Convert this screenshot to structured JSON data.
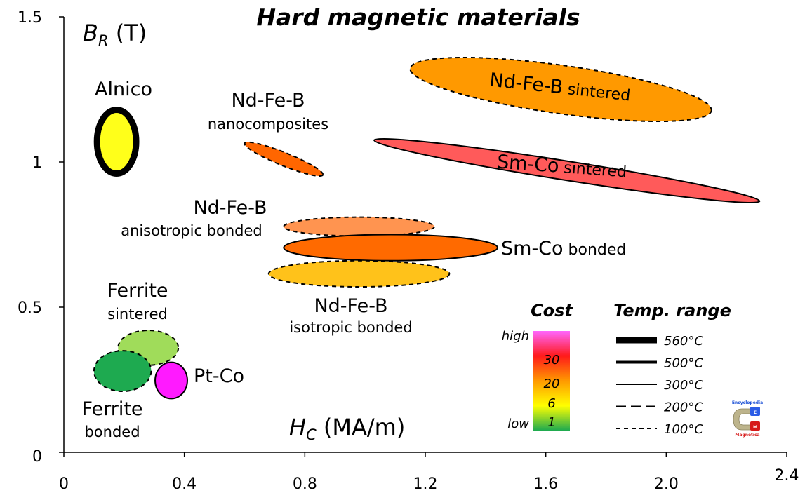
{
  "chart_data": {
    "type": "scatter",
    "title": "Hard magnetic materials",
    "xlabel": "H",
    "xlabel_sub": "C",
    "xlabel_unit": " (MA/m)",
    "ylabel": "B",
    "ylabel_sub": "R",
    "ylabel_unit": " (T)",
    "xlim": [
      0,
      2.4
    ],
    "ylim": [
      0,
      1.5
    ],
    "x_ticks": [
      {
        "value": 0,
        "label": "0"
      },
      {
        "value": 0.4,
        "label": "0.4"
      },
      {
        "value": 0.8,
        "label": "0.8"
      },
      {
        "value": 1.2,
        "label": "1.2"
      },
      {
        "value": 1.6,
        "label": "1.6"
      },
      {
        "value": 2.0,
        "label": "2.0"
      },
      {
        "value": 2.4,
        "label": "2.4"
      }
    ],
    "y_ticks": [
      {
        "value": 0,
        "label": "0"
      },
      {
        "value": 0.5,
        "label": "0.5"
      },
      {
        "value": 1,
        "label": "1"
      },
      {
        "value": 1.5,
        "label": "1.5"
      }
    ],
    "materials": [
      {
        "id": "nd-fe-b-sintered",
        "x_range": [
          1.15,
          2.15
        ],
        "y_range": [
          1.14,
          1.36
        ],
        "tilt_deg": 8,
        "fill": "#ff9900",
        "temp_class": "100C",
        "label_main": "Nd-Fe-B",
        "label_sub": "sintered",
        "label_inside": true
      },
      {
        "id": "sm-co-sintered",
        "x_range": [
          1.03,
          2.31
        ],
        "y_range": [
          0.86,
          1.08
        ],
        "tilt_deg": 9,
        "fill": "#ff5a5a",
        "temp_class": "300C",
        "label_main": "Sm-Co",
        "label_sub": "sintered",
        "label_inside": true
      },
      {
        "id": "alnico",
        "x_range": [
          0.11,
          0.24
        ],
        "y_range": [
          0.96,
          1.18
        ],
        "tilt_deg": 0,
        "fill": "#ffff1a",
        "temp_class": "560C",
        "label_main": "Alnico",
        "label_sub": ""
      },
      {
        "id": "nd-fe-b-nanocomposites",
        "x_range": [
          0.6,
          0.86
        ],
        "y_range": [
          0.96,
          1.06
        ],
        "tilt_deg": 22,
        "fill": "#ff6600",
        "temp_class": "100C",
        "label_main": "Nd-Fe-B",
        "label_sub": "nanocomposites"
      },
      {
        "id": "nd-fe-b-anisotropic-bonded",
        "x_range": [
          0.73,
          1.23
        ],
        "y_range": [
          0.745,
          0.81
        ],
        "tilt_deg": 0,
        "fill": "#ff9450",
        "temp_class": "100C",
        "label_main": "Nd-Fe-B",
        "label_sub": "anisotropic bonded"
      },
      {
        "id": "sm-co-bonded",
        "x_range": [
          0.73,
          1.44
        ],
        "y_range": [
          0.66,
          0.75
        ],
        "tilt_deg": 0,
        "fill": "#ff6a00",
        "temp_class": "300C",
        "label_main": "Sm-Co",
        "label_sub": "bonded"
      },
      {
        "id": "nd-fe-b-isotropic-bonded",
        "x_range": [
          0.68,
          1.28
        ],
        "y_range": [
          0.57,
          0.66
        ],
        "tilt_deg": 0,
        "fill": "#ffc21a",
        "temp_class": "100C",
        "label_main": "Nd-Fe-B",
        "label_sub": "isotropic bonded"
      },
      {
        "id": "ferrite-sintered",
        "x_range": [
          0.18,
          0.38
        ],
        "y_range": [
          0.3,
          0.42
        ],
        "tilt_deg": 0,
        "fill": "#a0dc5a",
        "temp_class": "100C",
        "label_main": "Ferrite",
        "label_sub": "sintered"
      },
      {
        "id": "ferrite-bonded",
        "x_range": [
          0.1,
          0.29
        ],
        "y_range": [
          0.21,
          0.35
        ],
        "tilt_deg": 0,
        "fill": "#1eaa50",
        "temp_class": "100C",
        "label_main": "Ferrite",
        "label_sub": "bonded"
      },
      {
        "id": "pt-co",
        "x_range": [
          0.303,
          0.41
        ],
        "y_range": [
          0.185,
          0.31
        ],
        "tilt_deg": 0,
        "fill": "#ff1aff",
        "temp_class": "300C",
        "label_main": "Pt-Co",
        "label_sub": ""
      }
    ],
    "legend": {
      "cost_title": "Cost",
      "cost_gradient": [
        "#ff66ff",
        "#ff1a1a",
        "#ff9900",
        "#ffff00",
        "#1eaa50"
      ],
      "cost_labels": [
        {
          "text": "high",
          "side": "left"
        },
        {
          "text": "30",
          "side": "inside"
        },
        {
          "text": "20",
          "side": "inside"
        },
        {
          "text": "6",
          "side": "inside"
        },
        {
          "text": "1",
          "side": "inside"
        },
        {
          "text": "low",
          "side": "left"
        }
      ],
      "temp_title": "Temp. range",
      "temp_items": [
        {
          "key": "560C",
          "label": "560°C",
          "stroke_width": 9,
          "dash": ""
        },
        {
          "key": "500C",
          "label": "500°C",
          "stroke_width": 4,
          "dash": ""
        },
        {
          "key": "300C",
          "label": "300°C",
          "stroke_width": 2,
          "dash": ""
        },
        {
          "key": "200C",
          "label": "200°C",
          "stroke_width": 2,
          "dash": "14 7"
        },
        {
          "key": "100C",
          "label": "100°C",
          "stroke_width": 2,
          "dash": "6 5"
        }
      ]
    },
    "logo": {
      "line1": "Encyclopedia",
      "line2": "Magnetica",
      "letter_e": "E",
      "letter_m": "M"
    }
  }
}
